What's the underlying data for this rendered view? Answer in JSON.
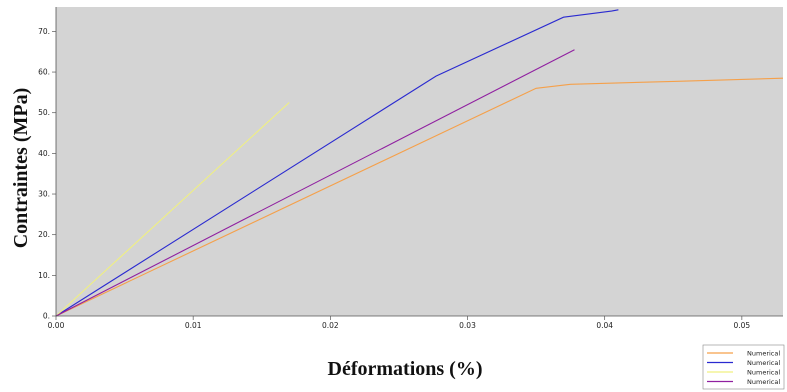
{
  "chart_data": {
    "type": "line",
    "xlabel": "Déformations (%)",
    "ylabel": "Contraintes (MPa)",
    "xlim": [
      0,
      0.053
    ],
    "ylim": [
      0,
      76
    ],
    "xticks": [
      0,
      0.01,
      0.02,
      0.03,
      0.04,
      0.05
    ],
    "xtick_labels": [
      "0.00",
      "0.01",
      "0.02",
      "0.03",
      "0.04",
      "0.05"
    ],
    "yticks": [
      0,
      10,
      20,
      30,
      40,
      50,
      60,
      70
    ],
    "ytick_labels": [
      "0.",
      "10.",
      "20.",
      "30.",
      "40.",
      "50.",
      "60.",
      "70."
    ],
    "grid": false,
    "background": "#d4d4d4",
    "legend_position": "bottom-right, outside plot",
    "series": [
      {
        "name": "Numerical",
        "color": "#f5a04a",
        "x": [
          0,
          0.035,
          0.0375,
          0.045,
          0.053
        ],
        "y": [
          0,
          56,
          57,
          57.7,
          58.5
        ]
      },
      {
        "name": "Numerical",
        "color": "#2a2ad0",
        "x": [
          0,
          0.0277,
          0.037,
          0.0405,
          0.041
        ],
        "y": [
          0,
          59,
          73.5,
          75,
          75.3
        ]
      },
      {
        "name": "Numerical",
        "color": "#f0f080",
        "x": [
          0,
          0.017
        ],
        "y": [
          0,
          52.5
        ]
      },
      {
        "name": "Numerical",
        "color": "#9020a0",
        "x": [
          0,
          0.0378
        ],
        "y": [
          0,
          65.5
        ]
      }
    ]
  }
}
